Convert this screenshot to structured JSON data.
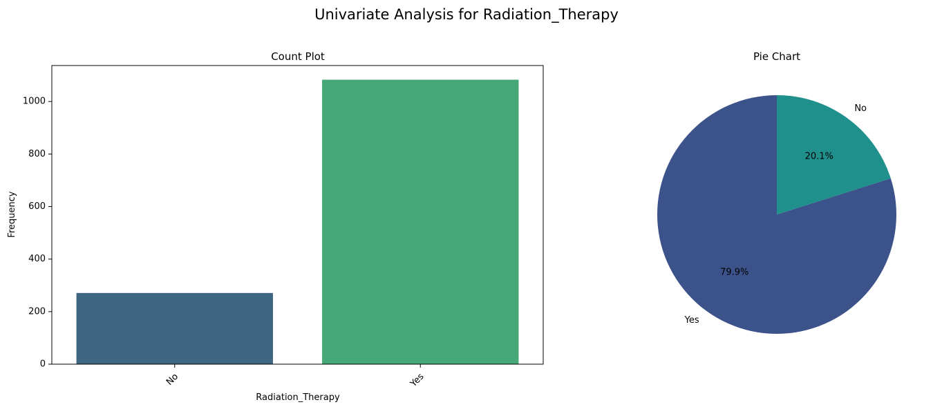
{
  "figure": {
    "suptitle": "Univariate Analysis for Radiation_Therapy"
  },
  "chart_data": [
    {
      "type": "bar",
      "title": "Count Plot",
      "xlabel": "Radiation_Therapy",
      "ylabel": "Frequency",
      "categories": [
        "No",
        "Yes"
      ],
      "values": [
        271,
        1083
      ],
      "colors": [
        "#3e6680",
        "#46a777"
      ],
      "ylim": [
        0,
        1137
      ],
      "yticks": [
        0,
        200,
        400,
        600,
        800,
        1000
      ],
      "xtick_rotation": 45,
      "grid": false
    },
    {
      "type": "pie",
      "title": "Pie Chart",
      "labels": [
        "Yes",
        "No"
      ],
      "values": [
        79.9,
        20.1
      ],
      "pct_labels": [
        "79.9%",
        "20.1%"
      ],
      "colors": [
        "#3c528a",
        "#20908c"
      ],
      "start_angle_deg": 90,
      "direction": "counterclockwise"
    }
  ]
}
